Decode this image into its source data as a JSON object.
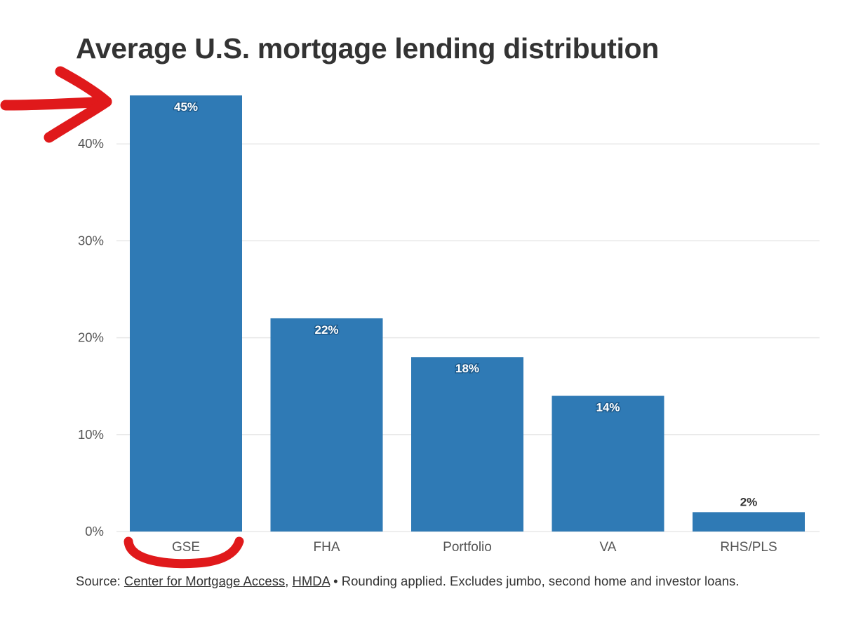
{
  "title": "Average U.S. mortgage lending distribution",
  "source": {
    "prefix": "Source: ",
    "link1": "Center for Mortgage Access",
    "comma": ", ",
    "link2": "HMDA",
    "bullet": " • ",
    "note": "Rounding applied. Excludes jumbo, second home and investor loans."
  },
  "colors": {
    "bar": "#2f7ab5",
    "grid": "#e8e8e8",
    "text": "#333333",
    "tick": "#555555",
    "annotation": "#e0191b"
  },
  "annotations": [
    "red-arrow-icon",
    "red-underline-icon"
  ],
  "chart_data": {
    "type": "bar",
    "title": "Average U.S. mortgage lending distribution",
    "categories": [
      "GSE",
      "FHA",
      "Portfolio",
      "VA",
      "RHS/PLS"
    ],
    "values": [
      45,
      22,
      18,
      14,
      2
    ],
    "data_labels": [
      "45%",
      "22%",
      "18%",
      "14%",
      "2%"
    ],
    "xlabel": "",
    "ylabel": "",
    "ylim": [
      0,
      46
    ],
    "yticks": [
      0,
      10,
      20,
      30,
      40
    ],
    "ytick_labels": [
      "0%",
      "10%",
      "20%",
      "30%",
      "40%"
    ],
    "grid": true,
    "legend": "none"
  }
}
